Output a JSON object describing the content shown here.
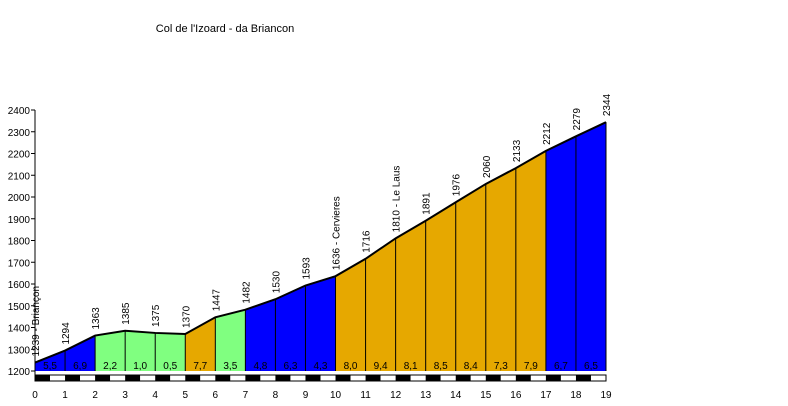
{
  "chart_data": {
    "type": "area",
    "title": "Col de l'Izoard - da Briancon",
    "xlabel": "",
    "ylabel": "",
    "xlim": [
      0,
      19
    ],
    "ylim": [
      1200,
      2400
    ],
    "x_ticks": [
      "0",
      "1",
      "2",
      "3",
      "4",
      "5",
      "6",
      "7",
      "8",
      "9",
      "10",
      "11",
      "12",
      "13",
      "14",
      "15",
      "16",
      "17",
      "18",
      "19"
    ],
    "y_ticks": [
      "1200",
      "1300",
      "1400",
      "1500",
      "1600",
      "1700",
      "1800",
      "1900",
      "2000",
      "2100",
      "2200",
      "2300",
      "2400"
    ],
    "y_tick_values": [
      1200,
      1300,
      1400,
      1500,
      1600,
      1700,
      1800,
      1900,
      2000,
      2100,
      2200,
      2300,
      2400
    ],
    "x": [
      0,
      1,
      2,
      3,
      4,
      5,
      6,
      7,
      8,
      9,
      10,
      11,
      12,
      13,
      14,
      15,
      16,
      17,
      18,
      19
    ],
    "altitude": [
      1239,
      1294,
      1363,
      1385,
      1375,
      1370,
      1447,
      1482,
      1530,
      1593,
      1636,
      1716,
      1810,
      1891,
      1976,
      2060,
      2133,
      2212,
      2279,
      2344
    ],
    "point_labels": [
      "1239 - Briançon",
      "1294",
      "1363",
      "1385",
      "1375",
      "1370",
      "1447",
      "1482",
      "1530",
      "1593",
      "1636 - Cervieres",
      "1716",
      "1810 - Le Laus",
      "1891",
      "1976",
      "2060",
      "2133",
      "2212",
      "2279",
      "2344"
    ],
    "segment_gradients": [
      "5,5",
      "6,9",
      "2,2",
      "1,0",
      "0,5",
      "7,7",
      "3,5",
      "4,8",
      "6,3",
      "4,3",
      "8,0",
      "9,4",
      "8,1",
      "8,5",
      "8,4",
      "7,3",
      "7,9",
      "6,7",
      "6,5"
    ],
    "segment_colors": [
      "#0000ff",
      "#0000ff",
      "#80ff80",
      "#80ff80",
      "#80ff80",
      "#e6a800",
      "#80ff80",
      "#0000ff",
      "#0000ff",
      "#0000ff",
      "#e6a800",
      "#e6a800",
      "#e6a800",
      "#e6a800",
      "#e6a800",
      "#e6a800",
      "#e6a800",
      "#0000ff",
      "#0000ff"
    ],
    "grid": false,
    "legend": "none"
  }
}
